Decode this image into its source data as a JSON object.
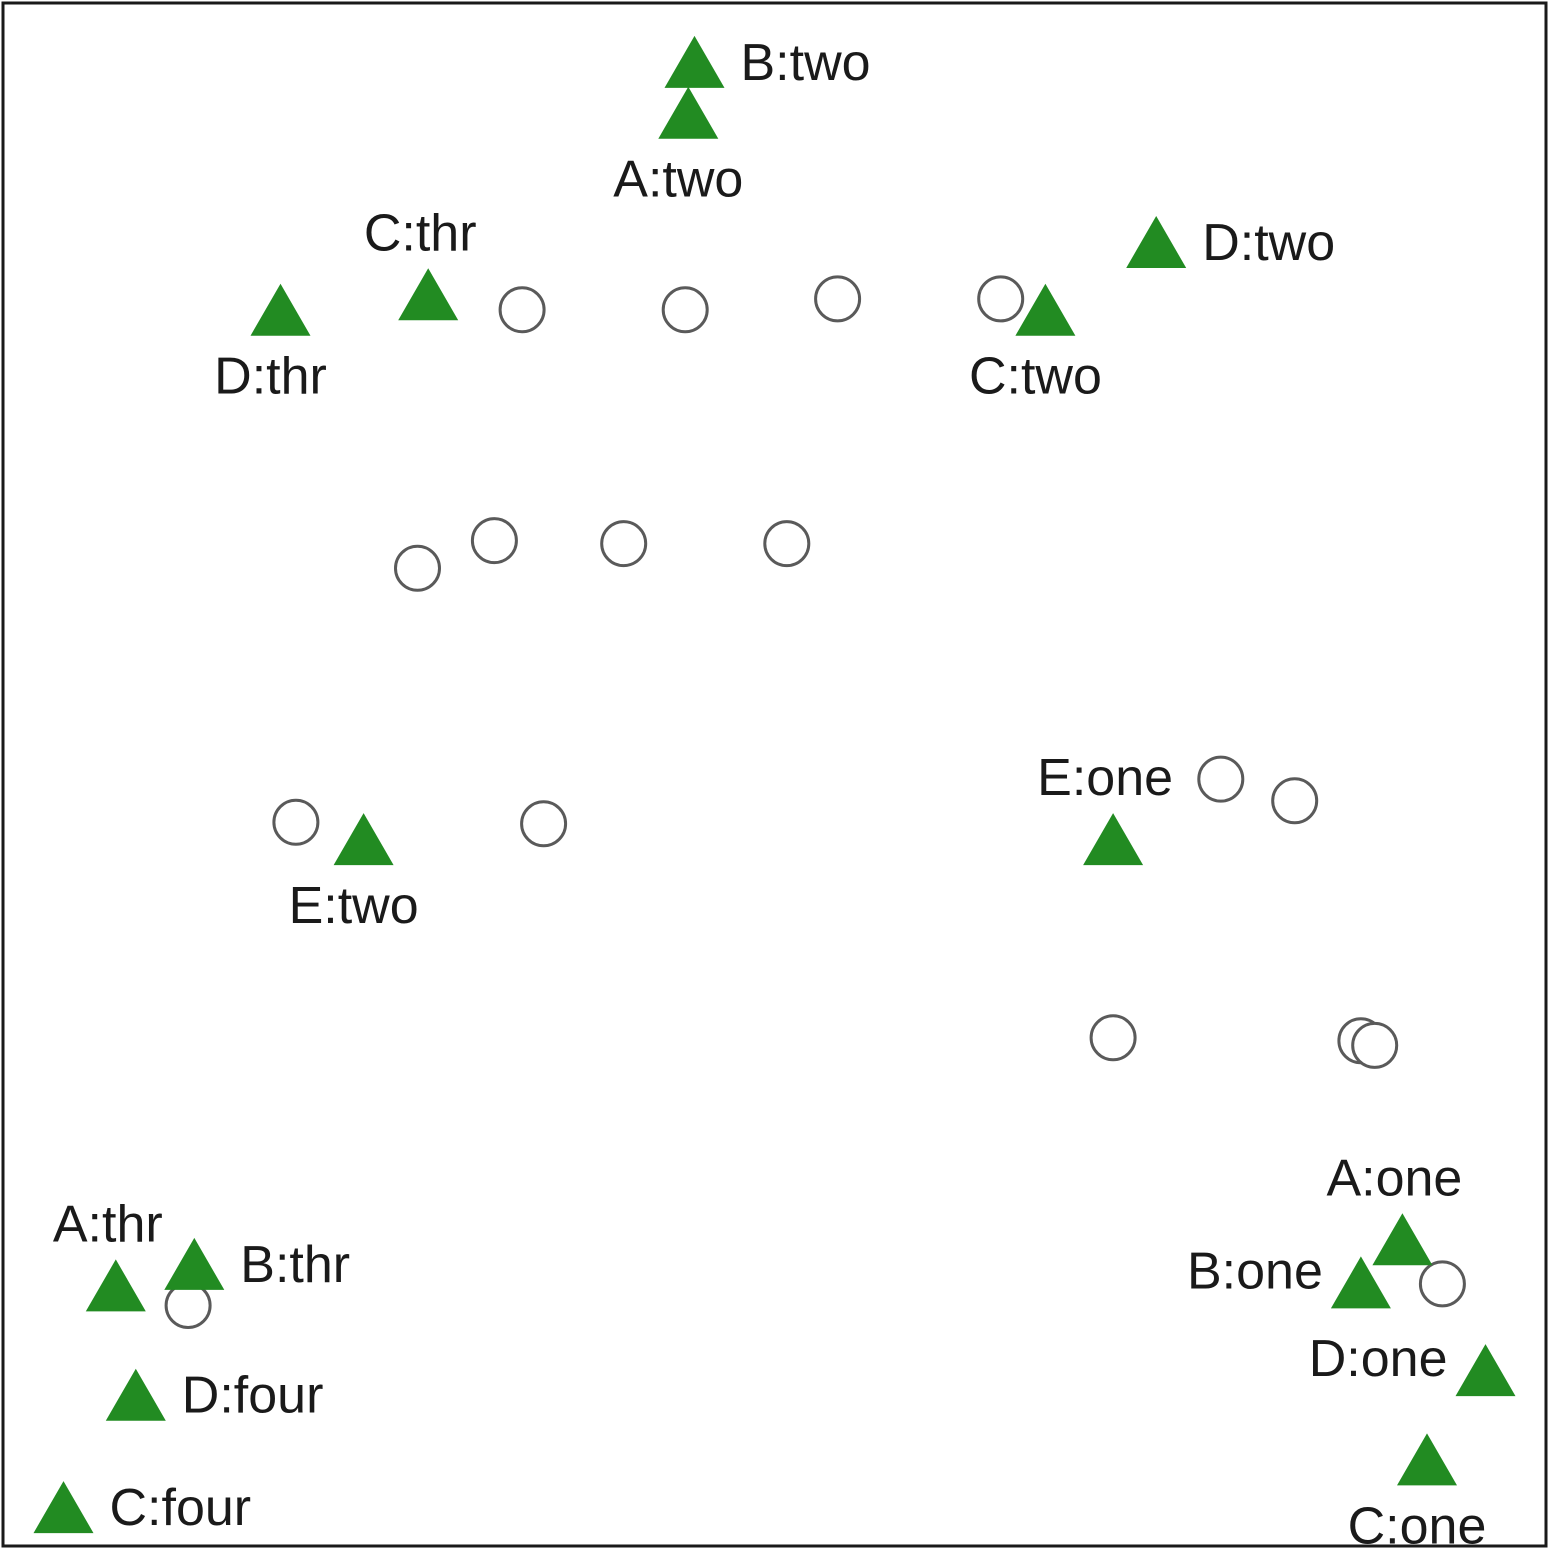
{
  "chart_data": {
    "type": "scatter",
    "title": "",
    "xlabel": "",
    "ylabel": "",
    "axes_visible": false,
    "grid": false,
    "legend": "none",
    "xlim": [
      0,
      100
    ],
    "ylim": [
      0,
      100
    ],
    "colors": {
      "species_marker": "#228b22",
      "site_marker_stroke": "#5a5a5a",
      "label_text": "#1a1a1a",
      "frame": "#1a1a1a"
    },
    "series": [
      {
        "marker": "open-circle",
        "points": [
          {
            "x": 33.6,
            "y": 80.2
          },
          {
            "x": 44.2,
            "y": 80.2
          },
          {
            "x": 54.1,
            "y": 80.9
          },
          {
            "x": 64.7,
            "y": 80.9
          },
          {
            "x": 26.8,
            "y": 63.4
          },
          {
            "x": 31.8,
            "y": 65.2
          },
          {
            "x": 40.2,
            "y": 65.0
          },
          {
            "x": 50.8,
            "y": 65.0
          },
          {
            "x": 18.9,
            "y": 46.9
          },
          {
            "x": 35.0,
            "y": 46.8
          },
          {
            "x": 79.0,
            "y": 49.7
          },
          {
            "x": 83.8,
            "y": 48.3
          },
          {
            "x": 72.0,
            "y": 32.9
          },
          {
            "x": 88.1,
            "y": 32.7
          },
          {
            "x": 89.0,
            "y": 32.4
          },
          {
            "x": 11.9,
            "y": 15.5
          },
          {
            "x": 93.4,
            "y": 16.9
          }
        ]
      },
      {
        "marker": "filled-triangle",
        "points": [
          {
            "x": 44.8,
            "y": 96.3,
            "label": "B:two"
          },
          {
            "x": 44.4,
            "y": 93.0,
            "label": "A:two"
          },
          {
            "x": 74.8,
            "y": 84.6,
            "label": "D:two"
          },
          {
            "x": 27.5,
            "y": 81.2,
            "label": "C:thr"
          },
          {
            "x": 17.9,
            "y": 80.2,
            "label": "D:thr"
          },
          {
            "x": 67.6,
            "y": 80.2,
            "label": "C:two"
          },
          {
            "x": 23.3,
            "y": 45.8,
            "label": "E:two"
          },
          {
            "x": 72.0,
            "y": 45.8,
            "label": "E:one"
          },
          {
            "x": 90.8,
            "y": 19.8,
            "label": "A:one"
          },
          {
            "x": 88.1,
            "y": 17.0,
            "label": "B:one"
          },
          {
            "x": 12.3,
            "y": 18.2,
            "label": "B:thr"
          },
          {
            "x": 7.2,
            "y": 16.8,
            "label": "A:thr"
          },
          {
            "x": 96.2,
            "y": 11.3,
            "label": "D:one"
          },
          {
            "x": 8.5,
            "y": 9.7,
            "label": "D:four"
          },
          {
            "x": 92.4,
            "y": 5.5,
            "label": "C:one"
          },
          {
            "x": 3.8,
            "y": 2.4,
            "label": "C:four"
          }
        ]
      }
    ]
  },
  "label_placement": {
    "B:two": "right",
    "A:two": "below",
    "D:two": "right",
    "C:thr": "above",
    "D:thr": "below",
    "C:two": "below",
    "E:two": "below",
    "E:one": "above",
    "A:one": "above",
    "B:one": "left",
    "B:thr": "right",
    "A:thr": "above",
    "D:one": "left",
    "D:four": "right",
    "C:one": "below",
    "C:four": "right"
  }
}
